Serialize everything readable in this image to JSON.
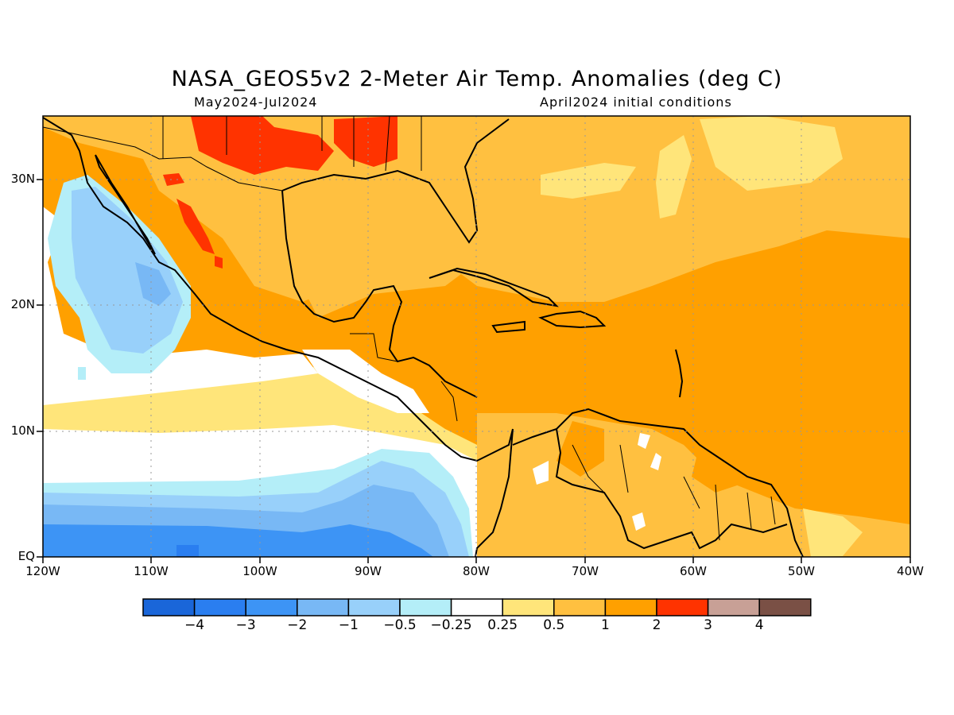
{
  "title": "NASA_GEOS5v2 2-Meter Air Temp. Anomalies (deg C)",
  "period": "May2024-Jul2024",
  "init_conditions": "April2024 initial conditions",
  "lon_ticks": [
    "120W",
    "110W",
    "100W",
    "90W",
    "80W",
    "70W",
    "60W",
    "50W",
    "40W"
  ],
  "lat_ticks": [
    "30N",
    "20N",
    "10N",
    "EQ"
  ],
  "colorbar": {
    "labels": [
      "-4",
      "-3",
      "-2",
      "-1",
      "-0.5",
      "-0.25",
      "0.25",
      "0.5",
      "1",
      "2",
      "3",
      "4"
    ],
    "colors": [
      "#1a66d9",
      "#2a7ef0",
      "#3d94f5",
      "#78b8f5",
      "#98d0fa",
      "#b4eef8",
      "#ffffff",
      "#ffe57a",
      "#ffc040",
      "#ffa000",
      "#ff3300",
      "#c8a096",
      "#7a5045"
    ]
  }
}
